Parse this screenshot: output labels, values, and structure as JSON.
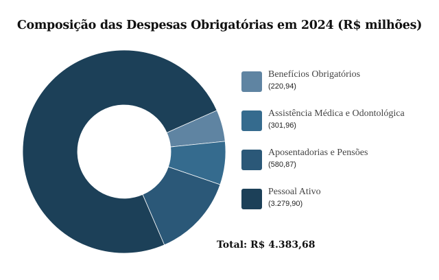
{
  "chart_data": {
    "type": "pie",
    "subtype": "donut",
    "title": "Composição das Despesas Obrigatórias em 2024 (R$ milhões)",
    "categories": [
      "Benefícios Obrigatórios",
      "Assistência Médica e Odontológica",
      "Aposentadorias e Pensões",
      "Pessoal Ativo"
    ],
    "values": [
      220.94,
      301.96,
      580.87,
      3279.9
    ],
    "value_labels": [
      "(220,94)",
      "(301,96)",
      "(580,87)",
      "(3.279,90)"
    ],
    "colors": [
      "#5f84a2",
      "#356b8e",
      "#2b5878",
      "#1c4058"
    ],
    "legend_position": "right",
    "total_label": "Total: R$ 4.383,68"
  }
}
